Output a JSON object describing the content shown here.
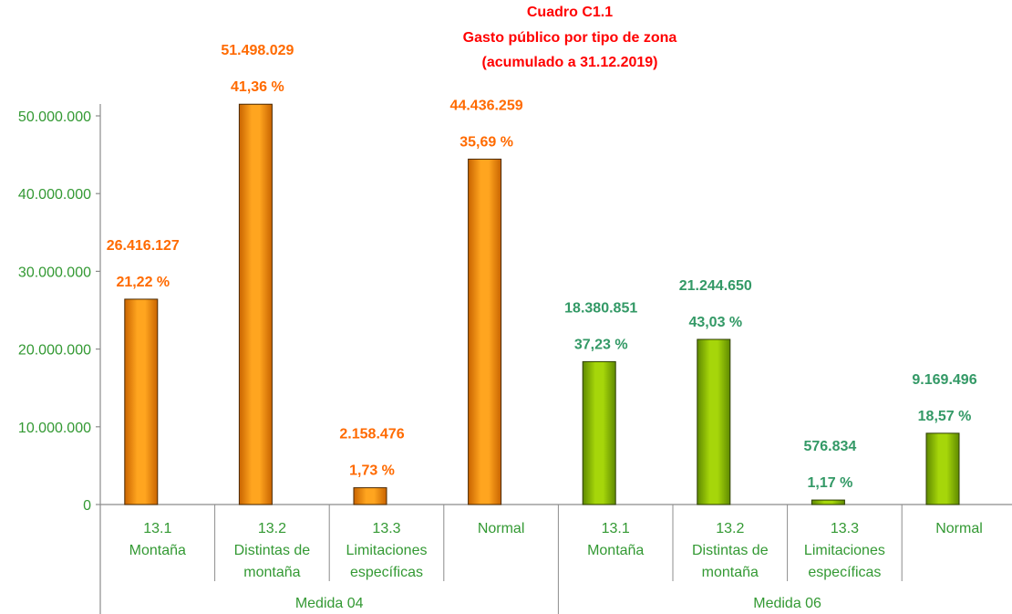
{
  "chart_data": {
    "type": "bar",
    "title_lines": [
      "Cuadro C1.1",
      "Gasto público por tipo de zona",
      "(acumulado a 31.12.2019)"
    ],
    "xlabel": "",
    "ylabel": "",
    "ylim": [
      0,
      50000000
    ],
    "y_ticks": [
      0,
      10000000,
      20000000,
      30000000,
      40000000,
      50000000
    ],
    "y_tick_labels": [
      "0",
      "10.000.000",
      "20.000.000",
      "30.000.000",
      "40.000.000",
      "50.000.000"
    ],
    "grid": false,
    "legend": "none",
    "groups": [
      {
        "name": "Medida 04",
        "bar_color_light": "#ffa51f",
        "bar_color_dark": "#c96400",
        "outline_color": "#4a2800",
        "label_color": "#ff6a00",
        "categories": [
          [
            "13.1",
            "Montaña"
          ],
          [
            "13.2",
            "Distintas de",
            "montaña"
          ],
          [
            "13.3",
            "Limitaciones",
            "específicas"
          ],
          [
            "Normal"
          ]
        ],
        "values": [
          26416127,
          51498029,
          2158476,
          44436259
        ],
        "value_labels": [
          "26.416.127",
          "51.498.029",
          "2.158.476",
          "44.436.259"
        ],
        "percent_labels": [
          "21,22 %",
          "41,36 %",
          "1,73 %",
          "35,69 %"
        ]
      },
      {
        "name": "Medida 06",
        "bar_color_light": "#a6d60a",
        "bar_color_dark": "#5f8a00",
        "outline_color": "#2c3d00",
        "label_color": "#339966",
        "categories": [
          [
            "13.1",
            "Montaña"
          ],
          [
            "13.2",
            "Distintas de",
            "montaña"
          ],
          [
            "13.3",
            "Limitaciones",
            "específicas"
          ],
          [
            "Normal"
          ]
        ],
        "values": [
          18380851,
          21244650,
          576834,
          9169496
        ],
        "value_labels": [
          "18.380.851",
          "21.244.650",
          "576.834",
          "9.169.496"
        ],
        "percent_labels": [
          "37,23 %",
          "43,03 %",
          "1,17 %",
          "18,57 %"
        ]
      }
    ]
  },
  "colors": {
    "title": "#ff0000",
    "axis_text": "#339933",
    "axis_line": "#8c8c8c"
  }
}
